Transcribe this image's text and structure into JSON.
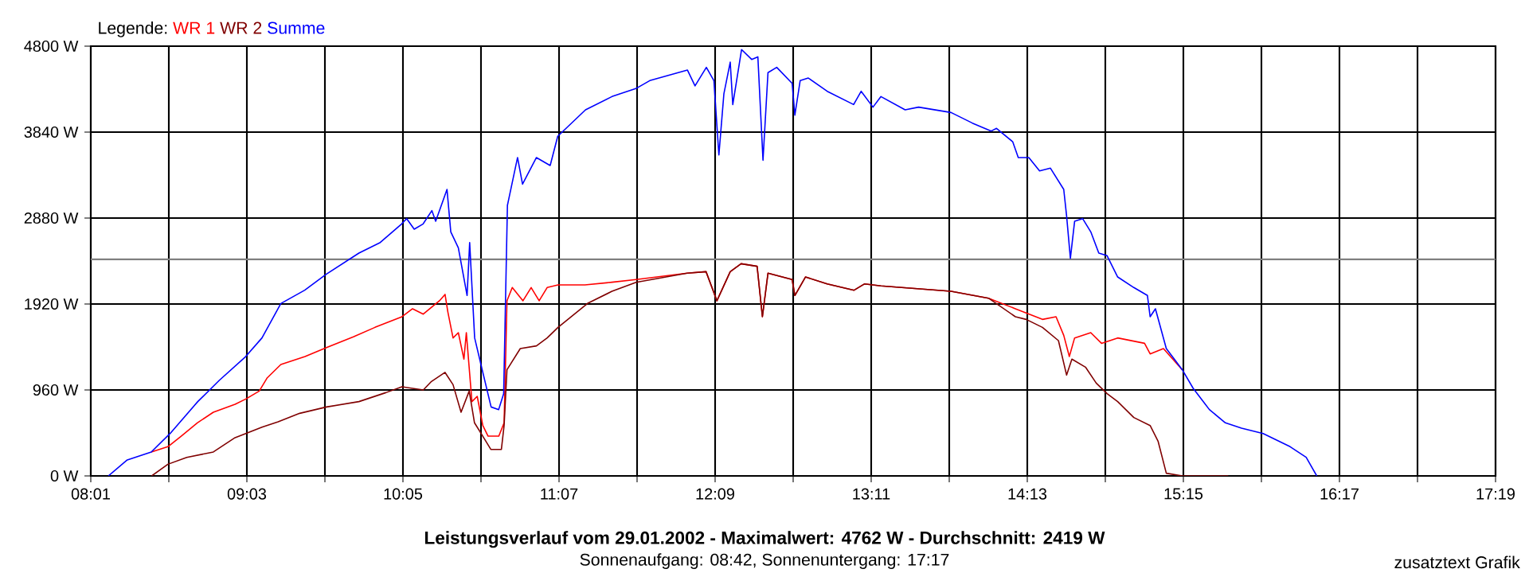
{
  "chart_data": {
    "type": "line",
    "title": "Leistungsverlauf vom 29.01.2002 - Maximalwert: 4762 W - Durchschnitt: 2419 W",
    "subtitle": "Sonnenaufgang: 08:42, Sonnenuntergang: 17:17",
    "legend_title": "Legende:",
    "annotations": [
      "zusatztext Grafik"
    ],
    "xlim": [
      8.0167,
      17.3167
    ],
    "xticks": [
      {
        "value": 8.0167,
        "label": "08:01"
      },
      {
        "value": 8.5333,
        "label": null
      },
      {
        "value": 9.05,
        "label": "09:03"
      },
      {
        "value": 9.5667,
        "label": null
      },
      {
        "value": 10.0833,
        "label": "10:05"
      },
      {
        "value": 10.6,
        "label": null
      },
      {
        "value": 11.1167,
        "label": "11:07"
      },
      {
        "value": 11.6333,
        "label": null
      },
      {
        "value": 12.15,
        "label": "12:09"
      },
      {
        "value": 12.6667,
        "label": null
      },
      {
        "value": 13.1833,
        "label": "13:11"
      },
      {
        "value": 13.7,
        "label": null
      },
      {
        "value": 14.2167,
        "label": "14:13"
      },
      {
        "value": 14.7333,
        "label": null
      },
      {
        "value": 15.25,
        "label": "15:15"
      },
      {
        "value": 15.7667,
        "label": null
      },
      {
        "value": 16.2833,
        "label": "16:17"
      },
      {
        "value": 16.8,
        "label": null
      },
      {
        "value": 17.3167,
        "label": "17:19"
      }
    ],
    "ylim": [
      0,
      4800
    ],
    "yticks": [
      {
        "value": 0,
        "label": "0 W"
      },
      {
        "value": 960,
        "label": "960 W"
      },
      {
        "value": 1920,
        "label": "1920 W"
      },
      {
        "value": 2880,
        "label": "2880 W"
      },
      {
        "value": 3840,
        "label": "3840 W"
      },
      {
        "value": 4800,
        "label": "4800 W"
      }
    ],
    "grid": true,
    "legend": "top left",
    "ref_lines": [
      {
        "axis": "y",
        "value": 2419,
        "color": "#808080"
      }
    ],
    "series": [
      {
        "name": "WR 1",
        "color": "#ff0000",
        "x": [
          8.417,
          8.527,
          8.615,
          8.722,
          8.828,
          8.972,
          9.043,
          9.132,
          9.185,
          9.275,
          9.435,
          9.577,
          9.755,
          9.898,
          10.077,
          10.147,
          10.218,
          10.325,
          10.362,
          10.38,
          10.415,
          10.45,
          10.487,
          10.503,
          10.54,
          10.575,
          10.612,
          10.647,
          10.718,
          10.753,
          10.772,
          10.807,
          10.878,
          10.932,
          10.985,
          11.038,
          11.11,
          11.288,
          11.467,
          11.627,
          11.965,
          12.09,
          12.162,
          12.25,
          12.322,
          12.428,
          12.463,
          12.5,
          12.66,
          12.678,
          12.748,
          12.892,
          13.07,
          13.14,
          13.248,
          13.712,
          13.96,
          14.138,
          14.317,
          14.407,
          14.458,
          14.495,
          14.53,
          14.637,
          14.708,
          14.815,
          14.993,
          15.03,
          15.118,
          15.243
        ],
        "values": [
          267,
          326,
          444,
          593,
          711,
          800,
          859,
          948,
          1096,
          1244,
          1333,
          1434,
          1553,
          1659,
          1778,
          1867,
          1807,
          1956,
          2027,
          1837,
          1541,
          1600,
          1304,
          1600,
          830,
          889,
          563,
          444,
          444,
          593,
          1956,
          2104,
          1956,
          2104,
          1956,
          2104,
          2133,
          2133,
          2163,
          2193,
          2264,
          2281,
          1956,
          2281,
          2370,
          2341,
          1778,
          2264,
          2193,
          2015,
          2222,
          2145,
          2074,
          2145,
          2122,
          2062,
          1985,
          1867,
          1748,
          1778,
          1570,
          1333,
          1541,
          1600,
          1481,
          1541,
          1481,
          1363,
          1422,
          1185
        ]
      },
      {
        "name": "WR 2",
        "color": "#800000",
        "x": [
          8.42,
          8.527,
          8.652,
          8.828,
          8.972,
          9.043,
          9.15,
          9.257,
          9.4,
          9.577,
          9.792,
          9.97,
          10.077,
          10.218,
          10.272,
          10.362,
          10.415,
          10.468,
          10.522,
          10.557,
          10.612,
          10.665,
          10.735,
          10.753,
          10.772,
          10.86,
          10.967,
          11.038,
          11.11,
          11.305,
          11.467,
          11.627,
          11.965,
          12.09,
          12.162,
          12.25,
          12.322,
          12.428,
          12.463,
          12.5,
          12.66,
          12.678,
          12.748,
          12.892,
          13.07,
          13.14,
          13.248,
          13.712,
          13.96,
          14.138,
          14.21,
          14.317,
          14.423,
          14.477,
          14.512,
          14.602,
          14.673,
          14.745,
          14.815,
          14.922,
          15.03,
          15.083,
          15.137,
          15.243,
          15.547
        ],
        "values": [
          0,
          130,
          207,
          267,
          427,
          474,
          545,
          604,
          699,
          770,
          830,
          930,
          996,
          960,
          1055,
          1156,
          1019,
          711,
          948,
          593,
          444,
          296,
          296,
          563,
          1185,
          1422,
          1452,
          1541,
          1659,
          1926,
          2062,
          2163,
          2264,
          2281,
          1956,
          2281,
          2370,
          2341,
          1778,
          2264,
          2193,
          2015,
          2222,
          2145,
          2074,
          2145,
          2122,
          2062,
          1985,
          1778,
          1748,
          1659,
          1511,
          1126,
          1304,
          1215,
          1037,
          919,
          830,
          652,
          563,
          385,
          30,
          0,
          0
        ]
      },
      {
        "name": "Summe",
        "color": "#0000ff",
        "x": [
          8.133,
          8.258,
          8.417,
          8.542,
          8.725,
          8.867,
          9.042,
          9.15,
          9.275,
          9.433,
          9.575,
          9.792,
          9.933,
          10.075,
          10.108,
          10.158,
          10.217,
          10.275,
          10.3,
          10.375,
          10.4,
          10.45,
          10.508,
          10.525,
          10.558,
          10.608,
          10.667,
          10.717,
          10.75,
          10.775,
          10.842,
          10.875,
          10.967,
          11.058,
          11.108,
          11.292,
          11.467,
          11.625,
          11.717,
          11.967,
          12.017,
          12.092,
          12.142,
          12.175,
          12.208,
          12.25,
          12.267,
          12.325,
          12.392,
          12.433,
          12.467,
          12.5,
          12.558,
          12.66,
          12.678,
          12.713,
          12.767,
          12.892,
          13.067,
          13.117,
          13.195,
          13.248,
          13.408,
          13.497,
          13.712,
          13.853,
          13.978,
          14.013,
          14.12,
          14.157,
          14.227,
          14.298,
          14.37,
          14.458,
          14.477,
          14.502,
          14.53,
          14.583,
          14.637,
          14.69,
          14.745,
          14.815,
          14.922,
          15.012,
          15.03,
          15.065,
          15.137,
          15.19,
          15.243,
          15.315,
          15.422,
          15.528,
          15.635,
          15.778,
          15.957,
          16.063,
          16.133
        ],
        "values": [
          0,
          178,
          267,
          474,
          830,
          1067,
          1333,
          1541,
          1926,
          2074,
          2252,
          2489,
          2607,
          2815,
          2874,
          2756,
          2815,
          2963,
          2844,
          3200,
          2726,
          2548,
          2015,
          2607,
          1541,
          1185,
          770,
          741,
          918,
          3022,
          3556,
          3259,
          3556,
          3467,
          3793,
          4089,
          4237,
          4326,
          4415,
          4533,
          4356,
          4563,
          4415,
          3585,
          4267,
          4622,
          4148,
          4762,
          4652,
          4681,
          3526,
          4504,
          4563,
          4385,
          4030,
          4415,
          4444,
          4296,
          4148,
          4296,
          4119,
          4237,
          4089,
          4119,
          4059,
          3941,
          3852,
          3882,
          3733,
          3556,
          3556,
          3407,
          3437,
          3200,
          2904,
          2430,
          2844,
          2874,
          2726,
          2489,
          2459,
          2222,
          2104,
          2015,
          1778,
          1867,
          1422,
          1304,
          1185,
          978,
          741,
          593,
          533,
          474,
          326,
          207,
          0
        ]
      }
    ]
  }
}
